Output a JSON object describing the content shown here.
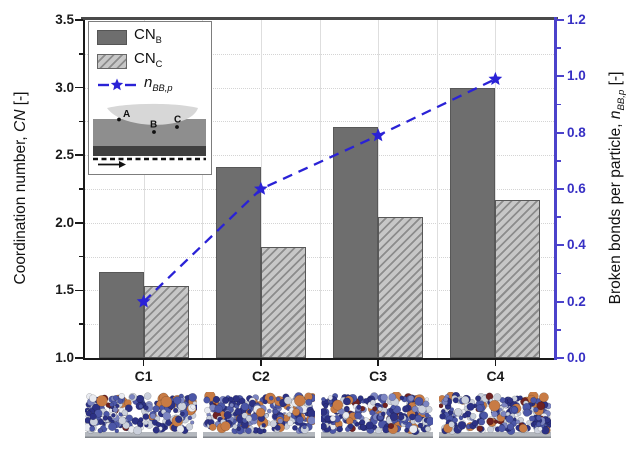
{
  "chart_data": {
    "type": "bar",
    "categories": [
      "C1",
      "C2",
      "C3",
      "C4"
    ],
    "series": [
      {
        "name": "CN_B",
        "type": "bar",
        "axis": "left",
        "values": [
          1.64,
          2.41,
          2.71,
          3.0
        ],
        "style": "solid-gray"
      },
      {
        "name": "CN_C",
        "type": "bar",
        "axis": "left",
        "values": [
          1.53,
          1.82,
          2.04,
          2.17
        ],
        "style": "hatched-gray"
      },
      {
        "name": "n_BB,p",
        "type": "line",
        "axis": "right",
        "values": [
          0.2,
          0.6,
          0.79,
          0.99
        ],
        "style": "blue-dashed-with-stars"
      }
    ],
    "left_axis": {
      "label": "Coordination number, CN [-]",
      "min": 1.0,
      "max": 3.5,
      "major_tick_labels": [
        "1.0",
        "1.5",
        "2.0",
        "2.5",
        "3.0",
        "3.5"
      ],
      "major_step": 0.5,
      "minor_step": 0.25
    },
    "right_axis": {
      "label": "Broken bonds per particle, n_BB,p [-]",
      "min": 0.0,
      "max": 1.2,
      "major_tick_labels": [
        "0.0",
        "0.2",
        "0.4",
        "0.6",
        "0.8",
        "1.0",
        "1.2"
      ],
      "major_step": 0.2,
      "minor_step": 0.1
    },
    "x_axis": {
      "tick_labels": [
        "C1",
        "C2",
        "C3",
        "C4"
      ]
    },
    "grid": true,
    "legend_position": "top-left-inset"
  },
  "axis_titles": {
    "left": {
      "prefix": "Coordination number, ",
      "symbol": "CN",
      "suffix": " [-]"
    },
    "right": {
      "prefix": "Broken bonds per particle, ",
      "symbol": "n",
      "symbol_sub": "BB,p",
      "suffix": " [-]"
    }
  },
  "legend": {
    "items": [
      {
        "main": "CN",
        "sub": "B",
        "swatch": "solid-gray-bar"
      },
      {
        "main": "CN",
        "sub": "C",
        "swatch": "hatched-gray-bar"
      },
      {
        "main": "n",
        "sub": "BB,p",
        "swatch": "blue-dashed-line-star"
      }
    ],
    "schematic": {
      "point_labels": [
        "A",
        "B",
        "C"
      ]
    }
  },
  "thumbnails": {
    "for_categories": [
      "C1",
      "C2",
      "C3",
      "C4"
    ]
  },
  "colors": {
    "bar_solid": "#6e6e6e",
    "bar_border": "#585858",
    "bar_hatch_bg": "#c7c7c7",
    "bar_hatch_line": "#8c8c8c",
    "line_blue": "#2a22d6",
    "axis_blue": "#4b42cb",
    "axis_blue_text": "#3730c4",
    "grid": "#dedede",
    "hgrid": "#d4d4d4",
    "spine": "#1a1a1a",
    "spine_top": "#4a4a4a",
    "lens": "#d7d7d7",
    "substrate": "#8e8e8e",
    "strip": "#404040",
    "plate": "#b4b8be",
    "plate_edge": "#82868c",
    "particles": [
      "#2c3184",
      "#4b56a7",
      "#7b84c1",
      "#cbd0dc",
      "#e9ebf1",
      "#c87b44",
      "#6f2222"
    ],
    "particle_weights": [
      0.27,
      0.24,
      0.12,
      0.18,
      0.06,
      0.09,
      0.04
    ]
  }
}
